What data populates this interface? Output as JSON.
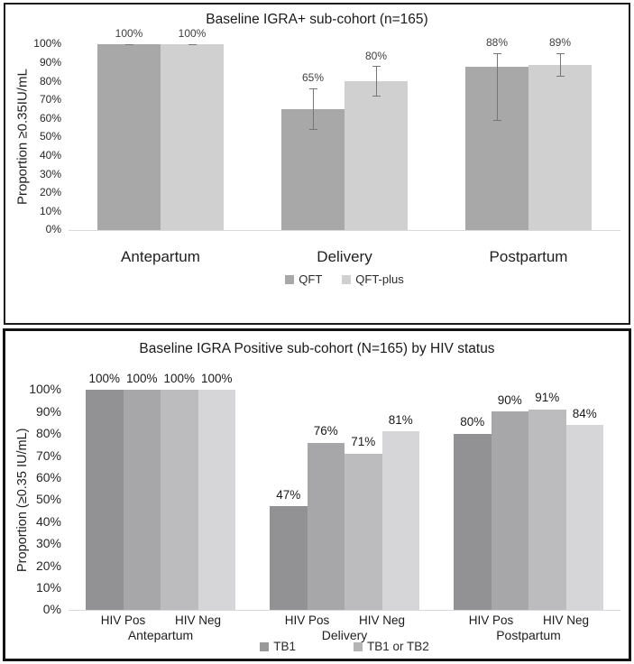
{
  "figure": {
    "description_colors": {
      "panel_border": "#1c1c1c",
      "axis_line": "#d9d9d9",
      "error_bar": "#767676",
      "background": "#ffffff"
    }
  },
  "chart_data": [
    {
      "type": "bar",
      "title": "Baseline IGRA+ sub-cohort (n=165)",
      "xlabel": "",
      "ylabel": "Proportion ≥0.35IU/mL",
      "ylim": [
        0,
        100
      ],
      "ytick_step": 10,
      "ytick_labels": [
        "100%",
        "90%",
        "80%",
        "70%",
        "60%",
        "50%",
        "40%",
        "30%",
        "20%",
        "10%",
        "0%"
      ],
      "grid": false,
      "legend_position": "bottom-center",
      "categories": [
        "Antepartum",
        "Delivery",
        "Postpartum"
      ],
      "series": [
        {
          "name": "QFT",
          "color": "#a8a8a8",
          "values": [
            100,
            65,
            88
          ],
          "labels": [
            "100%",
            "65%",
            "88%"
          ],
          "error_low": [
            100,
            54,
            59
          ],
          "error_high": [
            100,
            76,
            95
          ]
        },
        {
          "name": "QFT-plus",
          "color": "#d0d0d0",
          "values": [
            100,
            80,
            89
          ],
          "labels": [
            "100%",
            "80%",
            "89%"
          ],
          "error_low": [
            100,
            72,
            83
          ],
          "error_high": [
            100,
            88,
            95
          ]
        }
      ],
      "legend": [
        {
          "label": "QFT",
          "color": "#a8a8a8"
        },
        {
          "label": "QFT-plus",
          "color": "#d0d0d0"
        }
      ]
    },
    {
      "type": "bar",
      "title": "Baseline IGRA Positive sub-cohort (N=165) by HIV status",
      "xlabel": "",
      "ylabel": "Proportion (≥0.35 IU/mL)",
      "ylim": [
        0,
        100
      ],
      "ytick_step": 10,
      "ytick_labels": [
        "100%",
        "90%",
        "80%",
        "70%",
        "60%",
        "50%",
        "40%",
        "30%",
        "20%",
        "10%",
        "0%"
      ],
      "grid": false,
      "legend_position": "bottom-center",
      "categories": [
        "Antepartum",
        "Delivery",
        "Postpartum"
      ],
      "sub_labels": [
        "HIV Pos",
        "HIV Neg"
      ],
      "series": [
        {
          "name": "TB1 (HIV Pos)",
          "color": "#929295",
          "values": [
            100,
            47,
            80
          ],
          "labels": [
            "100%",
            "47%",
            "80%"
          ]
        },
        {
          "name": "TB1 or TB2 (HIV Pos)",
          "color": "#a7a7aa",
          "values": [
            100,
            76,
            90
          ],
          "labels": [
            "100%",
            "76%",
            "90%"
          ]
        },
        {
          "name": "TB1 (HIV Neg)",
          "color": "#bcbcbe",
          "values": [
            100,
            71,
            91
          ],
          "labels": [
            "100%",
            "71%",
            "91%"
          ]
        },
        {
          "name": "TB1 or TB2 (HIV Neg)",
          "color": "#d6d6d8",
          "values": [
            100,
            81,
            84
          ],
          "labels": [
            "100%",
            "81%",
            "84%"
          ]
        }
      ],
      "legend": [
        {
          "label": "TB1",
          "color": "#9a9a9a"
        },
        {
          "label": "TB1 or TB2",
          "color": "#b5b5b5"
        }
      ]
    }
  ]
}
